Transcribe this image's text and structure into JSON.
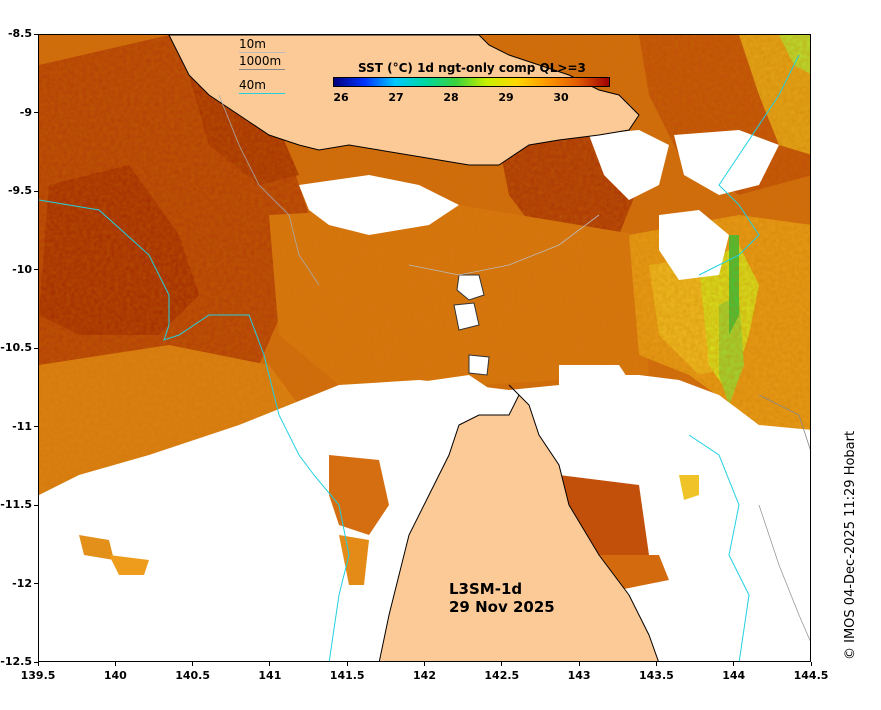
{
  "map": {
    "colorbar_title": "SST (°C) 1d ngt-only comp QL>=3",
    "colorbar_ticks": [
      "26",
      "27",
      "28",
      "29",
      "30"
    ],
    "colorbar_colors": [
      "#00007f",
      "#0033ff",
      "#00c8ff",
      "#00d7a0",
      "#3cd23c",
      "#c8f000",
      "#ffd700",
      "#ff9600",
      "#e05a00",
      "#a00000"
    ],
    "depth_legend": [
      {
        "label": "10m",
        "color": "#bbbbbb"
      },
      {
        "label": "1000m",
        "color": "#888888"
      },
      {
        "label": "40m",
        "color": "#22d0e0"
      }
    ],
    "product_label": "L3SM-1d",
    "date_label": "29 Nov 2025",
    "credit": "© IMOS 04-Dec-2025 11:29 Hobart",
    "land_color": "#fcca96",
    "x_ticks": [
      "139.5",
      "140",
      "140.5",
      "141",
      "141.5",
      "142",
      "142.5",
      "143",
      "143.5",
      "144",
      "144.5"
    ],
    "y_ticks": [
      "-8.5",
      "-9",
      "-9.5",
      "-10",
      "-10.5",
      "-11",
      "-11.5",
      "-12",
      "-12.5"
    ],
    "x_range": [
      139.5,
      144.5
    ],
    "y_range": [
      -12.5,
      -8.5
    ]
  }
}
